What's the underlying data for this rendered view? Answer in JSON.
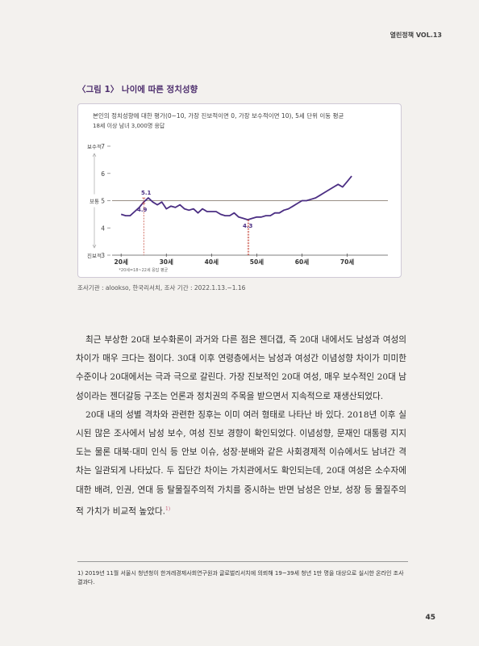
{
  "header": {
    "journal": "열린정책 VOL.13"
  },
  "figure": {
    "title": "〈그림 1〉 나이에 따른 정치성향",
    "caption_line1": "본인의 정치성향에 대한 평가(0~10, 가장 진보적이면 0, 가장 보수적이면 10), 5세 단위 이동 평균",
    "caption_line2": "18세 이상 남녀 3,000명 응답",
    "source": "조사기관 : alookso, 한국리서치, 조사 기간 : 2022.1.13.~1.16"
  },
  "chart_data": {
    "type": "line",
    "ylim": [
      3,
      7
    ],
    "yticks": [
      3,
      4,
      5,
      6,
      7
    ],
    "xlim": [
      18,
      79
    ],
    "xticks": [
      20,
      30,
      40,
      50,
      60,
      70
    ],
    "xtick_labels": [
      "20세",
      "30세",
      "40세",
      "50세",
      "60세",
      "70세"
    ],
    "y_side_labels": {
      "top": "보수적",
      "middle": "보통",
      "bottom": "진보적"
    },
    "x_note": "*20세=18~22세 응답 평균",
    "reference_line": 5,
    "annotations": [
      {
        "x": 25,
        "y": 5.1,
        "label": "5.1"
      },
      {
        "x": 25,
        "y": 4.9,
        "label": "4.9"
      },
      {
        "x": 48,
        "y": 4.3,
        "label": "4.3"
      }
    ],
    "series": [
      {
        "x": [
          20,
          21,
          22,
          23,
          24,
          25,
          26,
          27,
          28,
          29,
          30,
          31,
          32,
          33,
          34,
          35,
          36,
          37,
          38,
          39,
          40,
          41,
          42,
          43,
          44,
          45,
          46,
          47,
          48,
          49,
          50,
          51,
          52,
          53,
          54,
          55,
          56,
          57,
          58,
          59,
          60,
          61,
          62,
          63,
          64,
          65,
          66,
          67,
          68,
          69,
          70,
          71
        ],
        "values": [
          4.5,
          4.45,
          4.45,
          4.6,
          4.75,
          4.95,
          5.1,
          4.95,
          4.85,
          4.95,
          4.7,
          4.8,
          4.75,
          4.85,
          4.7,
          4.65,
          4.7,
          4.55,
          4.7,
          4.6,
          4.6,
          4.6,
          4.5,
          4.45,
          4.45,
          4.55,
          4.4,
          4.35,
          4.3,
          4.35,
          4.4,
          4.4,
          4.45,
          4.45,
          4.55,
          4.55,
          4.65,
          4.7,
          4.8,
          4.9,
          5.0,
          5.0,
          5.05,
          5.1,
          5.2,
          5.3,
          5.4,
          5.5,
          5.6,
          5.5,
          5.7,
          5.9
        ]
      }
    ]
  },
  "body": {
    "paragraph1": "최근 부상한 20대 보수화론이 과거와 다른 점은 젠더갭, 즉 20대 내에서도 남성과 여성의 차이가 매우 크다는 점이다. 30대 이후 연령층에서는 남성과 여성간 이념성향 차이가 미미한 수준이나 20대에서는 극과 극으로 갈린다. 가장 진보적인 20대 여성, 매우 보수적인 20대 남성이라는 젠더갈등 구조는 언론과 정치권의 주목을 받으면서 지속적으로 재생산되었다.",
    "paragraph2": "20대 내의 성별 격차와 관련한 징후는 이미 여러 형태로 나타난 바 있다. 2018년 이후 실시된 많은 조사에서 남성 보수, 여성 진보 경향이 확인되었다. 이념성향, 문재인 대통령 지지도는 물론 대북·대미 인식 등 안보 이슈, 성장·분배와 같은 사회경제적 이슈에서도 남녀간 격차는 일관되게 나타났다. 두 집단간 차이는 가치관에서도 확인되는데, 20대 여성은 소수자에 대한 배려, 인권, 연대 등 탈물질주의적 가치를 중시하는 반면 남성은 안보, 성장 등 물질주의적 가치가 비교적 높았다.",
    "footnote_marker": "1)"
  },
  "footnote": "1) 2019년 11월 서울시 청년청이 한겨레경제사회연구원과 글로벌리서치에 의뢰해 19~39세 청년 1만 명을 대상으로 실시한 온라인 조사 결과다.",
  "page_number": "45",
  "colors": {
    "accent": "#4e2f6e",
    "line": "#4b2e83",
    "marker": "#c0392b"
  }
}
